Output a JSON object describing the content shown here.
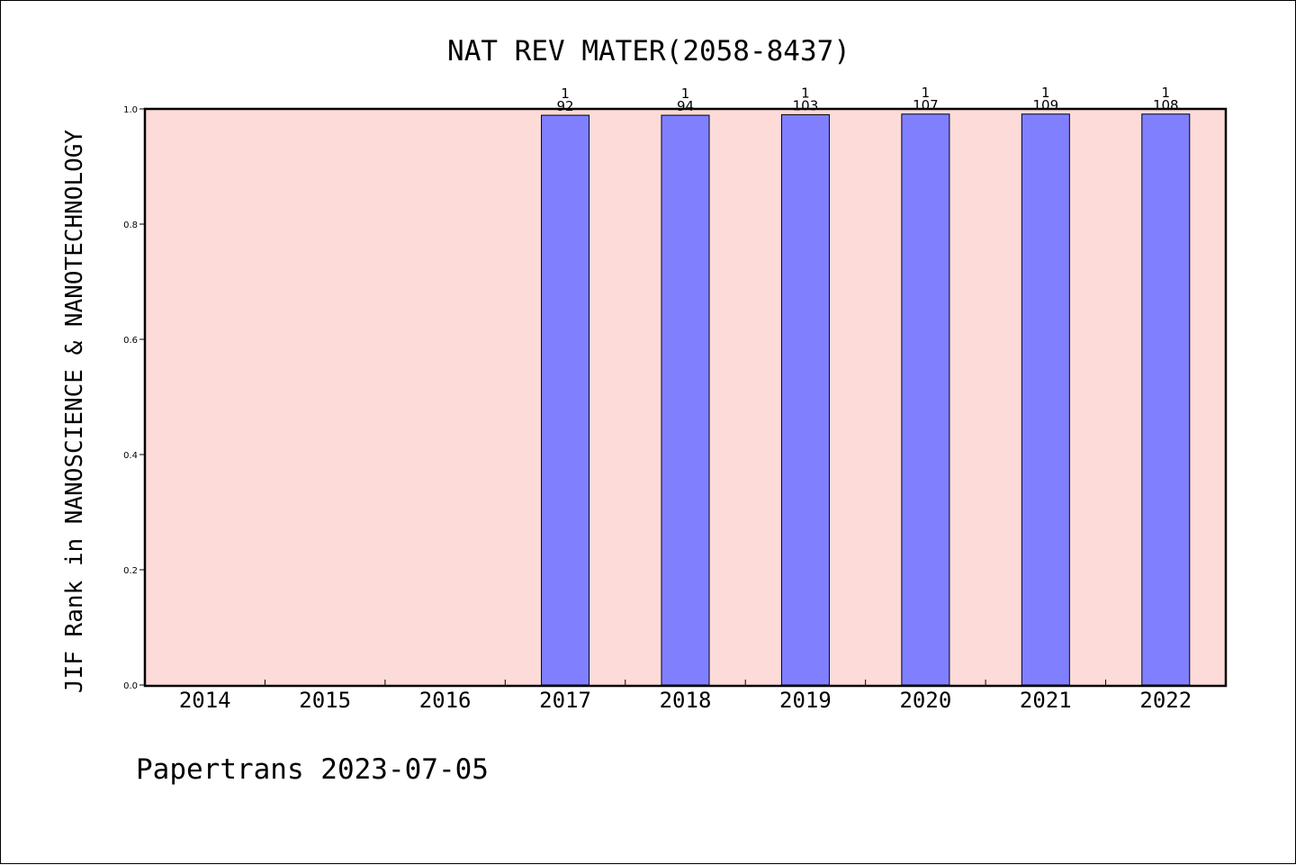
{
  "chart_data": {
    "type": "bar",
    "title": "NAT REV MATER(2058-8437)",
    "xlabel": "",
    "ylabel": "JIF Rank in NANOSCIENCE & NANOTECHNOLOGY",
    "ylim": [
      0,
      1.0
    ],
    "yticks": [
      "0.0",
      "0.2",
      "0.4",
      "0.6",
      "0.8",
      "1.0"
    ],
    "grid": false,
    "categories": [
      "2014",
      "2015",
      "2016",
      "2017",
      "2018",
      "2019",
      "2020",
      "2021",
      "2022"
    ],
    "values": [
      null,
      null,
      null,
      0.989,
      0.989,
      0.99,
      0.991,
      0.991,
      0.991
    ],
    "bar_labels": [
      null,
      null,
      null,
      {
        "rank": "1",
        "total": "92"
      },
      {
        "rank": "1",
        "total": "94"
      },
      {
        "rank": "1",
        "total": "103"
      },
      {
        "rank": "1",
        "total": "107"
      },
      {
        "rank": "1",
        "total": "109"
      },
      {
        "rank": "1",
        "total": "108"
      }
    ],
    "colors": {
      "plot_background": "#fddbd8",
      "bar_fill": "#8080ff",
      "bar_edge": "#000000"
    }
  },
  "footer": "Papertrans 2023-07-05"
}
